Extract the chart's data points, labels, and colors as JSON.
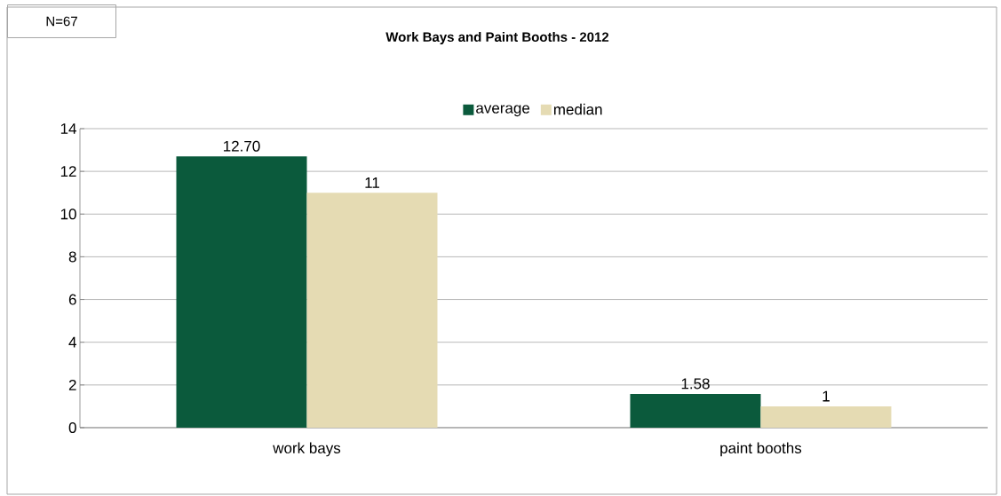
{
  "chart_data": {
    "type": "bar",
    "title": "Work Bays and Paint Booths - 2012",
    "categories": [
      "work bays",
      "paint booths"
    ],
    "series": [
      {
        "name": "average",
        "color": "#0b5a3c",
        "values": [
          12.7,
          1.58
        ],
        "value_labels": [
          "12.70",
          "1.58"
        ]
      },
      {
        "name": "median",
        "color": "#e5dbb3",
        "values": [
          11,
          1
        ],
        "value_labels": [
          "11",
          "1"
        ]
      }
    ],
    "ylim": [
      0,
      14
    ],
    "yticks": [
      0,
      2,
      4,
      6,
      8,
      10,
      12,
      14
    ],
    "grid": "y",
    "legend": "top",
    "annotations": [
      "N=67"
    ]
  }
}
